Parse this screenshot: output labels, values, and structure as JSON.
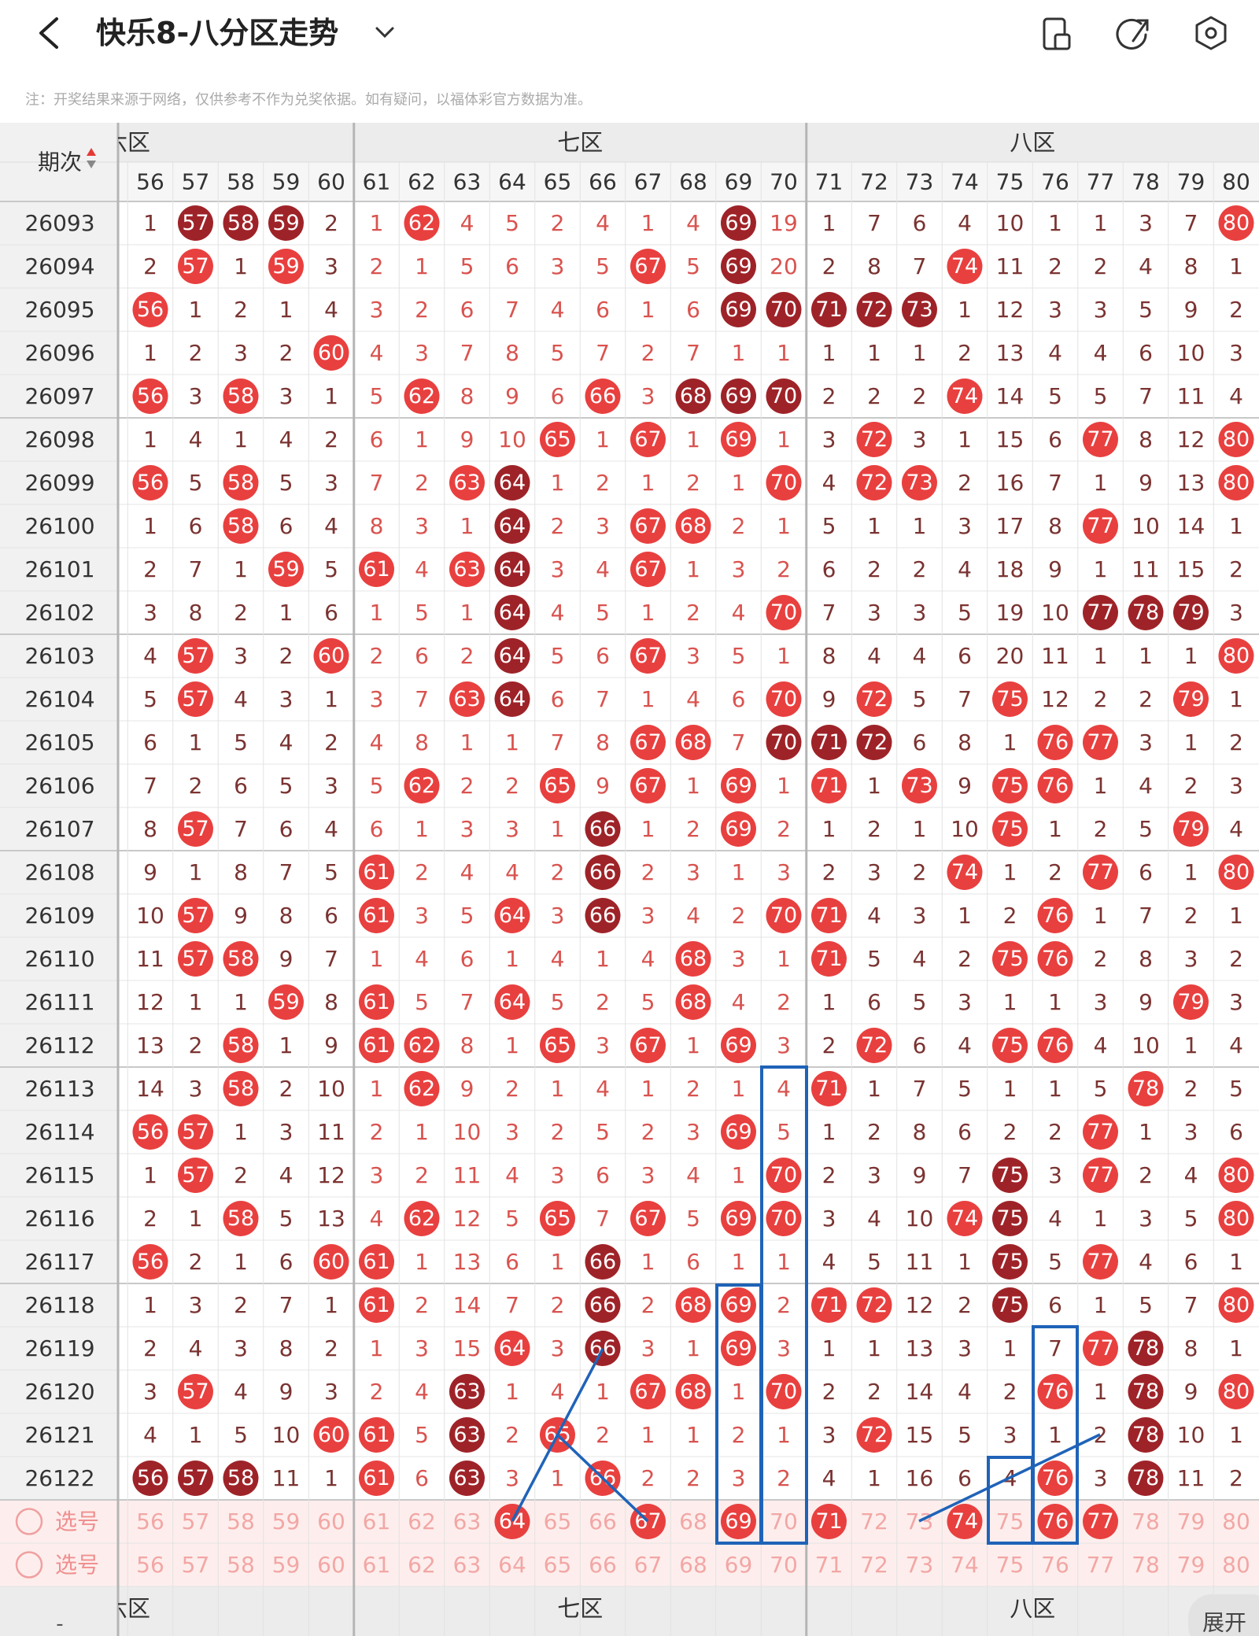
{
  "header": {
    "title": "快乐8-八分区走势"
  },
  "note": "注：开奖结果来源于网络，仅供参考不作为兑奖依据。如有疑问，以福体彩官方数据为准。",
  "table": {
    "period_header": "期次",
    "zones": [
      "六区",
      "七区",
      "八区"
    ],
    "columns": [
      56,
      57,
      58,
      59,
      60,
      61,
      62,
      63,
      64,
      65,
      66,
      67,
      68,
      69,
      70,
      71,
      72,
      73,
      74,
      75,
      76,
      77,
      78,
      79,
      80
    ],
    "rows": [
      {
        "period": "26093",
        "cells": [
          1,
          57,
          58,
          59,
          2,
          1,
          62,
          4,
          5,
          2,
          4,
          1,
          4,
          69,
          19,
          1,
          7,
          6,
          4,
          10,
          1,
          1,
          3,
          7,
          80
        ],
        "marks": ".ddd..r......d..........r"
      },
      {
        "period": "26094",
        "cells": [
          2,
          57,
          1,
          59,
          3,
          2,
          1,
          5,
          6,
          3,
          5,
          67,
          5,
          69,
          20,
          2,
          8,
          7,
          74,
          11,
          2,
          2,
          4,
          8,
          1
        ],
        "marks": ".r.r.......r.d....r......"
      },
      {
        "period": "26095",
        "cells": [
          56,
          1,
          2,
          1,
          4,
          3,
          2,
          6,
          7,
          4,
          6,
          1,
          6,
          69,
          70,
          71,
          72,
          73,
          1,
          12,
          3,
          3,
          5,
          9,
          2
        ],
        "marks": "r............ddddd......."
      },
      {
        "period": "26096",
        "cells": [
          1,
          2,
          3,
          2,
          60,
          4,
          3,
          7,
          8,
          5,
          7,
          2,
          7,
          1,
          1,
          1,
          1,
          1,
          2,
          13,
          4,
          4,
          6,
          10,
          3
        ],
        "marks": "....r...................."
      },
      {
        "period": "26097",
        "cells": [
          56,
          3,
          58,
          3,
          1,
          5,
          62,
          8,
          9,
          6,
          66,
          3,
          68,
          69,
          70,
          2,
          2,
          2,
          74,
          14,
          5,
          5,
          7,
          11,
          4
        ],
        "marks": "r.r...r...r.ddd...r......"
      },
      {
        "period": "26098",
        "cells": [
          1,
          4,
          1,
          4,
          2,
          6,
          1,
          9,
          10,
          65,
          1,
          67,
          1,
          69,
          1,
          3,
          72,
          3,
          1,
          15,
          6,
          77,
          8,
          12,
          80
        ],
        "marks": ".........r.r.r..r....r..r"
      },
      {
        "period": "26099",
        "cells": [
          56,
          5,
          58,
          5,
          3,
          7,
          2,
          63,
          64,
          1,
          2,
          1,
          2,
          1,
          70,
          4,
          72,
          73,
          2,
          16,
          7,
          1,
          9,
          13,
          80
        ],
        "marks": "r.r....rd.....r.rr......r"
      },
      {
        "period": "26100",
        "cells": [
          1,
          6,
          58,
          6,
          4,
          8,
          3,
          1,
          64,
          2,
          3,
          67,
          68,
          2,
          1,
          5,
          1,
          1,
          3,
          17,
          8,
          77,
          10,
          14,
          1
        ],
        "marks": "..r.....d..rr........r..."
      },
      {
        "period": "26101",
        "cells": [
          2,
          7,
          1,
          59,
          5,
          61,
          4,
          63,
          64,
          3,
          4,
          67,
          1,
          3,
          2,
          6,
          2,
          2,
          4,
          18,
          9,
          1,
          11,
          15,
          2
        ],
        "marks": "...r.r.rd..r............."
      },
      {
        "period": "26102",
        "cells": [
          3,
          8,
          2,
          1,
          6,
          1,
          5,
          1,
          64,
          4,
          5,
          1,
          2,
          4,
          70,
          7,
          3,
          3,
          5,
          19,
          10,
          77,
          78,
          79,
          3
        ],
        "marks": "........d.....r......ddd."
      },
      {
        "period": "26103",
        "cells": [
          4,
          57,
          3,
          2,
          60,
          2,
          6,
          2,
          64,
          5,
          6,
          67,
          3,
          5,
          1,
          8,
          4,
          4,
          6,
          20,
          11,
          1,
          1,
          1,
          80
        ],
        "marks": ".r..r...d..r............r"
      },
      {
        "period": "26104",
        "cells": [
          5,
          57,
          4,
          3,
          1,
          3,
          7,
          63,
          64,
          6,
          7,
          1,
          4,
          6,
          70,
          9,
          72,
          5,
          7,
          75,
          12,
          2,
          2,
          79,
          1
        ],
        "marks": ".r.....rd.....r.r..r...r."
      },
      {
        "period": "26105",
        "cells": [
          6,
          1,
          5,
          4,
          2,
          4,
          8,
          1,
          1,
          7,
          8,
          67,
          68,
          7,
          70,
          71,
          72,
          6,
          8,
          1,
          76,
          77,
          3,
          1,
          2
        ],
        "marks": "...........rr.ddd...rr..."
      },
      {
        "period": "26106",
        "cells": [
          7,
          2,
          6,
          5,
          3,
          5,
          62,
          2,
          2,
          65,
          9,
          67,
          1,
          69,
          1,
          71,
          1,
          73,
          9,
          75,
          76,
          1,
          4,
          2,
          3
        ],
        "marks": "......r..r.r.r.r.r.rr...."
      },
      {
        "period": "26107",
        "cells": [
          8,
          57,
          7,
          6,
          4,
          6,
          1,
          3,
          3,
          1,
          66,
          1,
          2,
          69,
          2,
          1,
          2,
          1,
          10,
          75,
          1,
          2,
          5,
          79,
          4
        ],
        "marks": ".r........d..r.....r...r."
      },
      {
        "period": "26108",
        "cells": [
          9,
          1,
          8,
          7,
          5,
          61,
          2,
          4,
          4,
          2,
          66,
          2,
          3,
          1,
          3,
          2,
          3,
          2,
          74,
          1,
          2,
          77,
          6,
          1,
          80
        ],
        "marks": ".....r....d.......r..r..r"
      },
      {
        "period": "26109",
        "cells": [
          10,
          57,
          9,
          8,
          6,
          61,
          3,
          5,
          64,
          3,
          66,
          3,
          4,
          2,
          70,
          71,
          4,
          3,
          1,
          2,
          76,
          1,
          7,
          2,
          1
        ],
        "marks": ".r...r..r.d...rr....r...."
      },
      {
        "period": "26110",
        "cells": [
          11,
          57,
          58,
          9,
          7,
          1,
          4,
          6,
          1,
          4,
          1,
          4,
          68,
          3,
          1,
          71,
          5,
          4,
          2,
          75,
          76,
          2,
          8,
          3,
          2
        ],
        "marks": ".rr.........r..r...rr...."
      },
      {
        "period": "26111",
        "cells": [
          12,
          1,
          1,
          59,
          8,
          61,
          5,
          7,
          64,
          5,
          2,
          5,
          68,
          4,
          2,
          1,
          6,
          5,
          3,
          1,
          1,
          3,
          9,
          79,
          3
        ],
        "marks": "...r.r..r...r..........r."
      },
      {
        "period": "26112",
        "cells": [
          13,
          2,
          58,
          1,
          9,
          61,
          62,
          8,
          1,
          65,
          3,
          67,
          1,
          69,
          3,
          2,
          72,
          6,
          4,
          75,
          76,
          4,
          10,
          1,
          4
        ],
        "marks": "..r..rr..r.r.r..r..rr...."
      },
      {
        "period": "26113",
        "cells": [
          14,
          3,
          58,
          2,
          10,
          1,
          62,
          9,
          2,
          1,
          4,
          1,
          2,
          1,
          4,
          71,
          1,
          7,
          5,
          1,
          1,
          5,
          78,
          2,
          5
        ],
        "marks": "..r...r........r......r.."
      },
      {
        "period": "26114",
        "cells": [
          56,
          57,
          1,
          3,
          11,
          2,
          1,
          10,
          3,
          2,
          5,
          2,
          3,
          69,
          5,
          1,
          2,
          8,
          6,
          2,
          2,
          77,
          1,
          3,
          6
        ],
        "marks": "rr...........r.......r..."
      },
      {
        "period": "26115",
        "cells": [
          1,
          57,
          2,
          4,
          12,
          3,
          2,
          11,
          4,
          3,
          6,
          3,
          4,
          1,
          70,
          2,
          3,
          9,
          7,
          75,
          3,
          77,
          2,
          4,
          80
        ],
        "marks": ".r............r....d.r..r"
      },
      {
        "period": "26116",
        "cells": [
          2,
          1,
          58,
          5,
          13,
          4,
          62,
          12,
          5,
          65,
          7,
          67,
          5,
          69,
          70,
          3,
          4,
          10,
          74,
          75,
          4,
          1,
          3,
          5,
          80
        ],
        "marks": "..r...r..r.r.rr...rd....r"
      },
      {
        "period": "26117",
        "cells": [
          56,
          2,
          1,
          6,
          60,
          61,
          1,
          13,
          6,
          1,
          66,
          1,
          6,
          1,
          1,
          4,
          5,
          11,
          1,
          75,
          5,
          77,
          4,
          6,
          1
        ],
        "marks": "r...rr....d........d.r..."
      },
      {
        "period": "26118",
        "cells": [
          1,
          3,
          2,
          7,
          1,
          61,
          2,
          14,
          7,
          2,
          66,
          2,
          68,
          69,
          2,
          71,
          72,
          12,
          2,
          75,
          6,
          1,
          5,
          7,
          80
        ],
        "marks": ".....r....d.rr.rr..d....r"
      },
      {
        "period": "26119",
        "cells": [
          2,
          4,
          3,
          8,
          2,
          1,
          3,
          15,
          64,
          3,
          66,
          3,
          1,
          69,
          3,
          1,
          1,
          13,
          3,
          1,
          7,
          77,
          78,
          8,
          1
        ],
        "marks": "........r.d..r.......rd.."
      },
      {
        "period": "26120",
        "cells": [
          3,
          57,
          4,
          9,
          3,
          2,
          4,
          63,
          1,
          4,
          1,
          67,
          68,
          1,
          70,
          2,
          2,
          14,
          4,
          2,
          76,
          1,
          78,
          9,
          80
        ],
        "marks": ".r.....d...rr.r.....r.d.r"
      },
      {
        "period": "26121",
        "cells": [
          4,
          1,
          5,
          10,
          60,
          61,
          5,
          63,
          2,
          65,
          2,
          1,
          1,
          2,
          1,
          3,
          72,
          15,
          5,
          3,
          1,
          2,
          78,
          10,
          1
        ],
        "marks": "....rr.d.r......r.....d.."
      },
      {
        "period": "26122",
        "cells": [
          56,
          57,
          58,
          11,
          1,
          61,
          6,
          63,
          3,
          1,
          66,
          2,
          2,
          3,
          2,
          4,
          1,
          16,
          6,
          4,
          76,
          3,
          78,
          11,
          2
        ],
        "marks": "ddd..r.d..r.........r.d.."
      }
    ],
    "selection_rows": [
      {
        "label": "选号",
        "marks": "........r..r.r.r..r.rr..."
      },
      {
        "label": "选号",
        "marks": "........................."
      }
    ],
    "footer_mark": "-",
    "expand": "展开"
  }
}
